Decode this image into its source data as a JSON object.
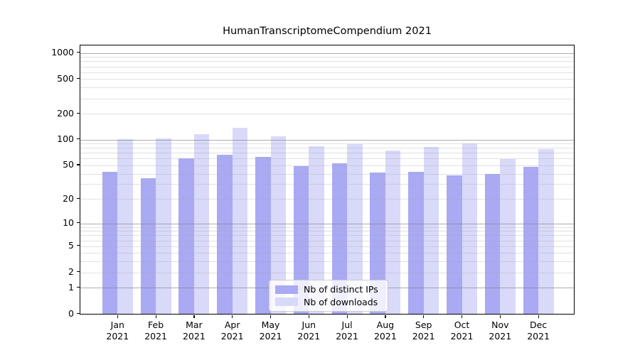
{
  "title": "HumanTranscriptomeCompendium 2021",
  "chart_data": {
    "type": "bar",
    "title": "HumanTranscriptomeCompendium 2021",
    "categories": [
      "Jan",
      "Feb",
      "Mar",
      "Apr",
      "May",
      "Jun",
      "Jul",
      "Aug",
      "Sep",
      "Oct",
      "Nov",
      "Dec"
    ],
    "category_year": "2021",
    "series": [
      {
        "name": "Nb of distinct IPs",
        "color": "#a9a9f4",
        "values": [
          42,
          35,
          61,
          66,
          63,
          49,
          53,
          41,
          42,
          38,
          40,
          48
        ]
      },
      {
        "name": "Nb of downloads",
        "color": "#d9d9fa",
        "values": [
          101,
          103,
          115,
          136,
          109,
          83,
          89,
          74,
          82,
          91,
          59,
          77
        ]
      }
    ],
    "xlabel": "",
    "ylabel": "",
    "yscale": "log1p",
    "ylim": [
      0,
      1220
    ],
    "ytick_labels": [
      0,
      1,
      2,
      5,
      10,
      20,
      50,
      100,
      200,
      500,
      1000
    ],
    "major_gridlines": [
      1,
      10,
      100,
      1000
    ],
    "minor_gridlines": [
      2,
      3,
      4,
      5,
      6,
      7,
      8,
      9,
      20,
      30,
      40,
      50,
      60,
      70,
      80,
      90,
      200,
      300,
      400,
      500,
      600,
      700,
      800,
      900
    ],
    "grid": true,
    "legend_position": "lower center",
    "grid_major_color": "#b0b0b0",
    "grid_minor_color": "#dcdcdc",
    "spine_color": "#000000",
    "background_color": "#ffffff"
  }
}
